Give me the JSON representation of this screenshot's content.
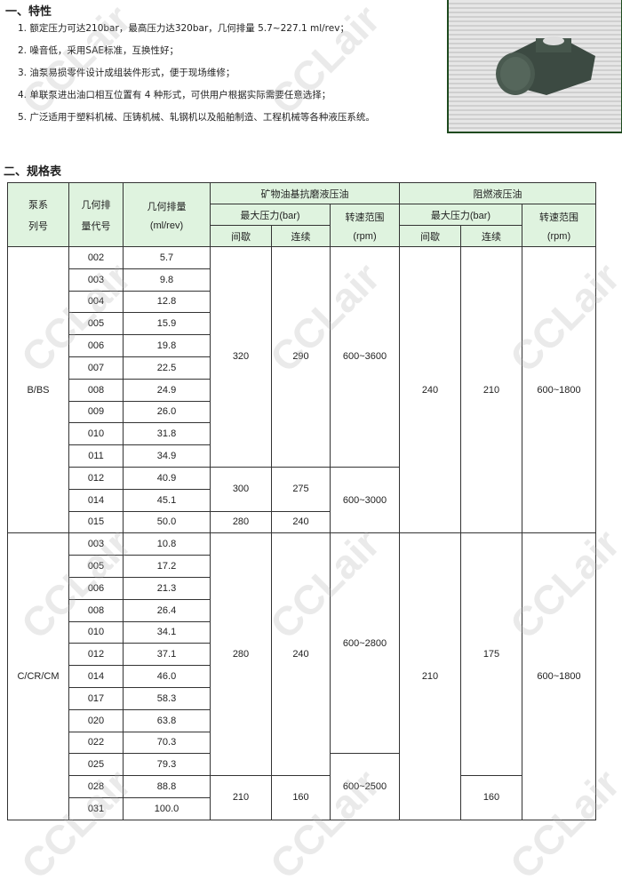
{
  "section1": {
    "title": "一、特性",
    "features": [
      "1. 额定压力可达210bar，最高压力达320bar，几何排量 5.7~227.1 ml/rev；",
      "2. 噪音低，采用SAE标准，互换性好；",
      "3. 油泵易损零件设计成组装件形式，便于现场维修；",
      "4. 单联泵进出油口相互位置有 4 种形式，可供用户根据实际需要任意选择；",
      "5. 广泛适用于塑料机械、压铸机械、轧钢机以及船舶制造、工程机械等各种液压系统。"
    ]
  },
  "section2": {
    "title": "二、规格表"
  },
  "watermark": "CCLair",
  "table": {
    "header": {
      "series": [
        "泵系",
        "列号"
      ],
      "code": [
        "几何排",
        "量代号"
      ],
      "disp": [
        "几何排量",
        "(ml/rev)"
      ],
      "mineral": "矿物油基抗磨液压油",
      "fire": "阻燃液压油",
      "max_pressure": "最大压力(bar)",
      "speed": [
        "转速范围",
        "(rpm)"
      ],
      "intermittent": "间歇",
      "continuous": "连续"
    },
    "groups": [
      {
        "series": "B/BS",
        "codes": [
          "002",
          "003",
          "004",
          "005",
          "006",
          "007",
          "008",
          "009",
          "010",
          "011",
          "012",
          "014",
          "015"
        ],
        "displacements": [
          "5.7",
          "9.8",
          "12.8",
          "15.9",
          "19.8",
          "22.5",
          "24.9",
          "26.0",
          "31.8",
          "34.9",
          "40.9",
          "45.1",
          "50.0"
        ],
        "mineral_intermittent": [
          {
            "value": "320",
            "rows": 10
          },
          {
            "value": "300",
            "rows": 2
          },
          {
            "value": "280",
            "rows": 1
          }
        ],
        "mineral_continuous": [
          {
            "value": "290",
            "rows": 10
          },
          {
            "value": "275",
            "rows": 2
          },
          {
            "value": "240",
            "rows": 1
          }
        ],
        "mineral_speed": [
          {
            "value": "600~3600",
            "rows": 10
          },
          {
            "value": "600~3000",
            "rows": 3
          }
        ],
        "fire_intermittent": [
          {
            "value": "240",
            "rows": 13
          }
        ],
        "fire_continuous": [
          {
            "value": "210",
            "rows": 13
          }
        ],
        "fire_speed": [
          {
            "value": "600~1800",
            "rows": 13
          }
        ]
      },
      {
        "series": "C/CR/CM",
        "codes": [
          "003",
          "005",
          "006",
          "008",
          "010",
          "012",
          "014",
          "017",
          "020",
          "022",
          "025",
          "028",
          "031"
        ],
        "displacements": [
          "10.8",
          "17.2",
          "21.3",
          "26.4",
          "34.1",
          "37.1",
          "46.0",
          "58.3",
          "63.8",
          "70.3",
          "79.3",
          "88.8",
          "100.0"
        ],
        "mineral_intermittent": [
          {
            "value": "280",
            "rows": 11
          },
          {
            "value": "210",
            "rows": 2
          }
        ],
        "mineral_continuous": [
          {
            "value": "240",
            "rows": 11
          },
          {
            "value": "160",
            "rows": 2
          }
        ],
        "mineral_speed": [
          {
            "value": "600~2800",
            "rows": 10
          },
          {
            "value": "600~2500",
            "rows": 3
          }
        ],
        "fire_intermittent": [
          {
            "value": "210",
            "rows": 13
          }
        ],
        "fire_continuous": [
          {
            "value": "175",
            "rows": 11
          },
          {
            "value": "160",
            "rows": 2
          }
        ],
        "fire_speed": [
          {
            "value": "600~1800",
            "rows": 13
          }
        ]
      }
    ]
  },
  "colors": {
    "header_bg": "#dff3df",
    "photo_border": "#1e4a1e"
  }
}
